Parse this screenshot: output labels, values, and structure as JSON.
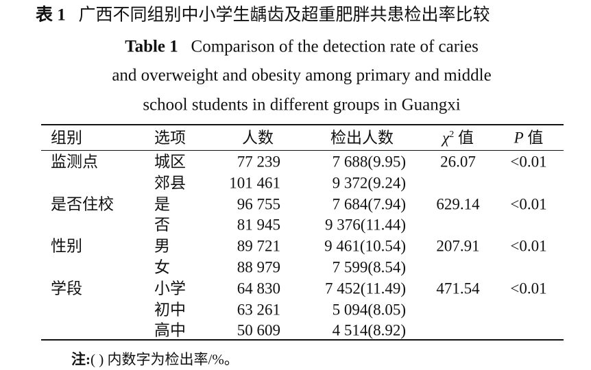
{
  "title": {
    "label": "表 1",
    "text": "广西不同组别中小学生龋齿及超重肥胖共患检出率比较"
  },
  "english_title": {
    "label": "Table 1",
    "lines": [
      "Comparison of the detection rate of caries",
      "and overweight and obesity among primary and middle",
      "school students in different groups in Guangxi"
    ]
  },
  "table": {
    "header": {
      "group": "组别",
      "option": "选项",
      "count": "人数",
      "detected": "检出人数",
      "chi2": {
        "symbol": "χ",
        "sup": "2",
        "text": "值"
      },
      "p": {
        "symbol": "P",
        "text": "值"
      }
    },
    "rows": [
      {
        "group": "监测点",
        "option": "城区",
        "count": "77 239",
        "detected": "7 688(9.95)",
        "chi2": "26.07",
        "p": "<0.01"
      },
      {
        "option": "郊县",
        "count": "101 461",
        "detected": "9 372(9.24)"
      },
      {
        "group": "是否住校",
        "option": "是",
        "count": "96 755",
        "detected": "7 684(7.94)",
        "chi2": "629.14",
        "p": "<0.01"
      },
      {
        "option": "否",
        "count": "81 945",
        "detected": "9 376(11.44)"
      },
      {
        "group": "性别",
        "option": "男",
        "count": "89 721",
        "detected": "9 461(10.54)",
        "chi2": "207.91",
        "p": "<0.01"
      },
      {
        "option": "女",
        "count": "88 979",
        "detected": "7 599(8.54)"
      },
      {
        "group": "学段",
        "option": "小学",
        "count": "64 830",
        "detected": "7 452(11.49)",
        "chi2": "471.54",
        "p": "<0.01"
      },
      {
        "option": "初中",
        "count": "63 261",
        "detected": "5 094(8.05)"
      },
      {
        "option": "高中",
        "count": "50 609",
        "detected": "4 514(8.92)"
      }
    ]
  },
  "note": {
    "label": "注:",
    "text": "( ) 内数字为检出率/%。"
  }
}
